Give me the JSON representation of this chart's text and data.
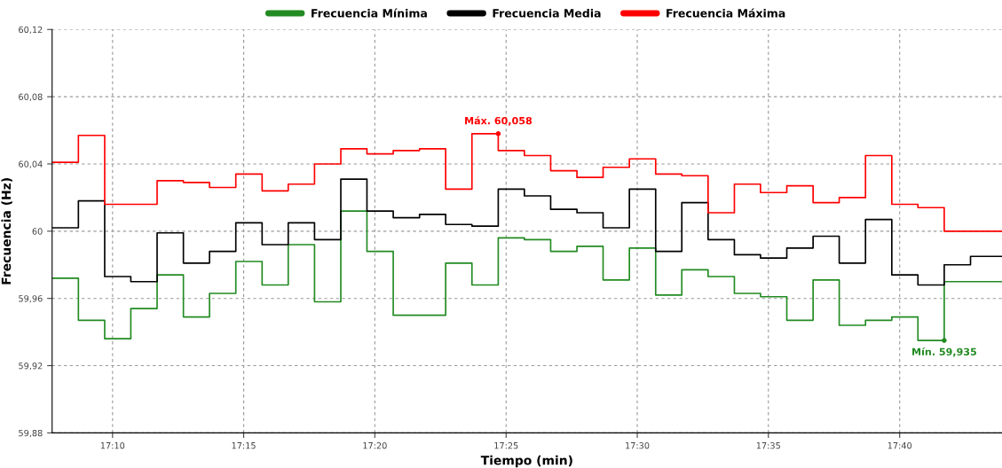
{
  "chart_data": {
    "type": "step",
    "xlabel": "Tiempo (min)",
    "ylabel": "Frecuencia (Hz)",
    "x": [
      17.1283,
      17.145,
      17.1617,
      17.1783,
      17.195,
      17.2117,
      17.2283,
      17.245,
      17.2617,
      17.2783,
      17.295,
      17.3117,
      17.3283,
      17.345,
      17.3617,
      17.3783,
      17.395,
      17.4117,
      17.4283,
      17.445,
      17.4617,
      17.4783,
      17.495,
      17.5117,
      17.5283,
      17.545,
      17.5617,
      17.5783,
      17.595,
      17.6117,
      17.6283,
      17.645,
      17.6617,
      17.6783,
      17.695,
      17.7117,
      17.7317
    ],
    "series": [
      {
        "name": "Frecuencia Mínima",
        "color": "#228b22",
        "values": [
          59.972,
          59.947,
          59.936,
          59.954,
          59.974,
          59.949,
          59.963,
          59.982,
          59.968,
          59.992,
          59.958,
          60.012,
          59.988,
          59.95,
          59.95,
          59.981,
          59.968,
          59.996,
          59.995,
          59.988,
          59.991,
          59.971,
          59.99,
          59.962,
          59.977,
          59.973,
          59.963,
          59.961,
          59.947,
          59.971,
          59.944,
          59.947,
          59.949,
          59.935,
          59.97,
          59.97,
          59.97
        ]
      },
      {
        "name": "Frecuencia Media",
        "color": "#000000",
        "values": [
          60.002,
          60.018,
          59.973,
          59.97,
          59.999,
          59.981,
          59.988,
          60.005,
          59.992,
          60.005,
          59.995,
          60.031,
          60.012,
          60.008,
          60.01,
          60.004,
          60.003,
          60.025,
          60.021,
          60.013,
          60.011,
          60.002,
          60.025,
          59.988,
          60.017,
          59.995,
          59.986,
          59.984,
          59.99,
          59.997,
          59.981,
          60.007,
          59.974,
          59.968,
          59.98,
          59.985,
          59.985
        ]
      },
      {
        "name": "Frecuencia Máxima",
        "color": "#ff0000",
        "values": [
          60.041,
          60.057,
          60.016,
          60.016,
          60.03,
          60.029,
          60.026,
          60.034,
          60.024,
          60.028,
          60.04,
          60.049,
          60.046,
          60.048,
          60.049,
          60.025,
          60.058,
          60.048,
          60.045,
          60.036,
          60.032,
          60.038,
          60.043,
          60.034,
          60.033,
          60.011,
          60.028,
          60.023,
          60.027,
          60.017,
          60.02,
          60.045,
          60.016,
          60.014,
          60.0,
          60.0,
          60.0
        ]
      }
    ],
    "xlim": [
      17.1283,
      17.7317
    ],
    "xticks": [
      {
        "value": 17.1667,
        "label": "17:10"
      },
      {
        "value": 17.25,
        "label": "17:15"
      },
      {
        "value": 17.3333,
        "label": "17:20"
      },
      {
        "value": 17.4167,
        "label": "17:25"
      },
      {
        "value": 17.5,
        "label": "17:30"
      },
      {
        "value": 17.5833,
        "label": "17:35"
      },
      {
        "value": 17.6667,
        "label": "17:40"
      }
    ],
    "ylim": [
      59.88,
      60.12
    ],
    "yticks": [
      {
        "value": 59.88,
        "label": "59,88"
      },
      {
        "value": 59.92,
        "label": "59,92"
      },
      {
        "value": 59.96,
        "label": "59,96"
      },
      {
        "value": 60,
        "label": "60"
      },
      {
        "value": 60.04,
        "label": "60,04"
      },
      {
        "value": 60.08,
        "label": "60,08"
      },
      {
        "value": 60.12,
        "label": "60,12"
      }
    ],
    "annotations": [
      {
        "text": "Máx. 60,058",
        "x": 17.4117,
        "y": 60.058
      },
      {
        "text": "Mín. 59,935",
        "x": 17.695,
        "y": 59.935
      }
    ],
    "grid": true,
    "legend": "top",
    "line_style": "solid"
  }
}
